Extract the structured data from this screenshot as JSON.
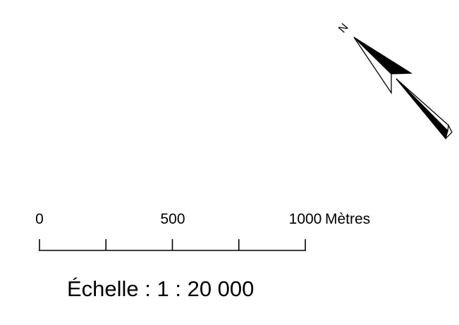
{
  "north_arrow": {
    "label": "N",
    "icon": "north-arrow-icon"
  },
  "scale_bar": {
    "tick_labels": [
      "0",
      "500",
      "1000"
    ],
    "unit": "Mètres",
    "minor_tick_count": 5
  },
  "scale_text": "Échelle : 1 : 20 000",
  "colors": {
    "ink": "#000000",
    "background": "#ffffff"
  }
}
